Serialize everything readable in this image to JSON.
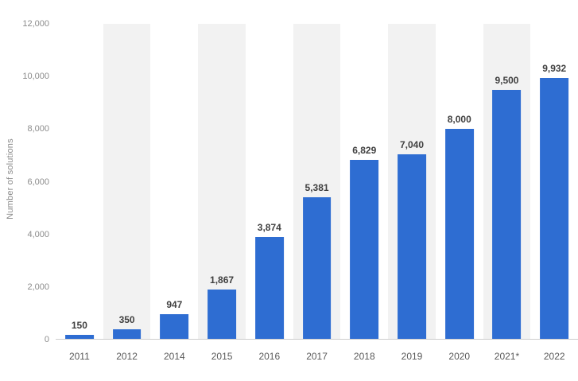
{
  "chart_data": {
    "type": "bar",
    "categories": [
      "2011",
      "2012",
      "2014",
      "2015",
      "2016",
      "2017",
      "2018",
      "2019",
      "2020",
      "2021*",
      "2022"
    ],
    "values": [
      150,
      350,
      947,
      1867,
      3874,
      5381,
      6829,
      7040,
      8000,
      9500,
      9932
    ],
    "value_labels": [
      "150",
      "350",
      "947",
      "1,867",
      "3,874",
      "5,381",
      "6,829",
      "7,040",
      "8,000",
      "9,500",
      "9,932"
    ],
    "title": "",
    "xlabel": "",
    "ylabel": "Number of solutions",
    "ylim": [
      0,
      12000
    ],
    "ytick_values": [
      0,
      2000,
      4000,
      6000,
      8000,
      10000,
      12000
    ],
    "ytick_labels": [
      "0",
      "2,000",
      "4,000",
      "6,000",
      "8,000",
      "10,000",
      "12,000"
    ],
    "legend": "none",
    "grid": "alternating-column-bands",
    "bar_color": "#2e6dd2",
    "band_color": "#f2f2f2",
    "baseline_color": "#cccccc"
  }
}
